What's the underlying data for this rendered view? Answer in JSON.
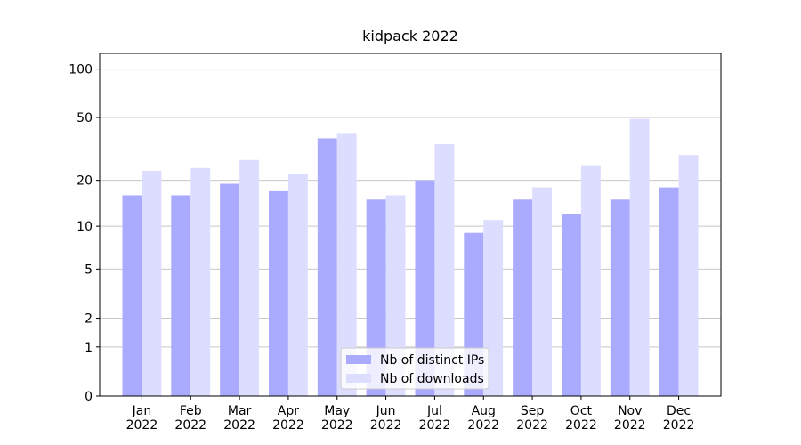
{
  "chart_data": {
    "type": "bar",
    "title": "kidpack 2022",
    "categories": [
      "Jan\n2022",
      "Feb\n2022",
      "Mar\n2022",
      "Apr\n2022",
      "May\n2022",
      "Jun\n2022",
      "Jul\n2022",
      "Aug\n2022",
      "Sep\n2022",
      "Oct\n2022",
      "Nov\n2022",
      "Dec\n2022"
    ],
    "series": [
      {
        "name": "Nb of distinct IPs",
        "color": "#aaaaff",
        "values": [
          16,
          16,
          19,
          17,
          37,
          15,
          20,
          9,
          15,
          12,
          15,
          18
        ]
      },
      {
        "name": "Nb of downloads",
        "color": "#ddddff",
        "values": [
          23,
          24,
          27,
          22,
          40,
          16,
          34,
          11,
          18,
          25,
          49,
          29
        ]
      }
    ],
    "yscale": "log1p",
    "ylim": [
      0,
      125
    ],
    "yticks": [
      0,
      1,
      2,
      5,
      10,
      20,
      50,
      100
    ],
    "grid": true,
    "legend": "lower center"
  }
}
